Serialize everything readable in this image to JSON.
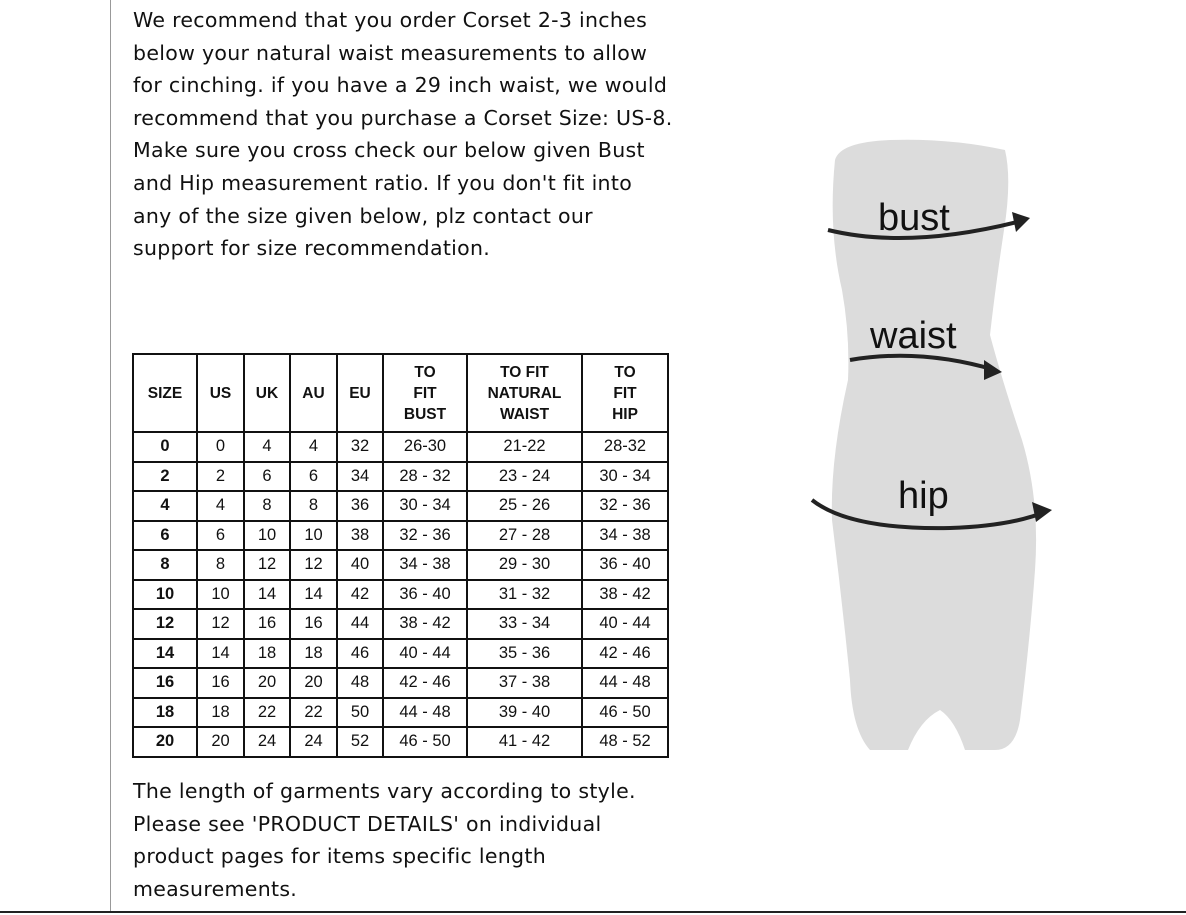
{
  "intro_text": "We recommend that you order Corset 2-3 inches below your natural waist measurements to allow for cinching. if you have a 29 inch waist, we would recommend that you purchase a Corset Size: US-8. Make sure you cross check our below given Bust and Hip measurement ratio. If you don't fit into any of the size given below, plz contact our support for size recommendation.",
  "table": {
    "headers": [
      "SIZE",
      "US",
      "UK",
      "AU",
      "EU",
      "TO FIT BUST",
      "TO FIT NATURAL WAIST",
      "TO FIT HIP"
    ],
    "rows": [
      [
        "0",
        "0",
        "4",
        "4",
        "32",
        "26-30",
        "21-22",
        "28-32"
      ],
      [
        "2",
        "2",
        "6",
        "6",
        "34",
        "28 - 32",
        "23 - 24",
        "30 - 34"
      ],
      [
        "4",
        "4",
        "8",
        "8",
        "36",
        "30 - 34",
        "25 - 26",
        "32 - 36"
      ],
      [
        "6",
        "6",
        "10",
        "10",
        "38",
        "32 - 36",
        "27 - 28",
        "34 - 38"
      ],
      [
        "8",
        "8",
        "12",
        "12",
        "40",
        "34 - 38",
        "29 - 30",
        "36 - 40"
      ],
      [
        "10",
        "10",
        "14",
        "14",
        "42",
        "36 - 40",
        "31 - 32",
        "38 - 42"
      ],
      [
        "12",
        "12",
        "16",
        "16",
        "44",
        "38 - 42",
        "33 - 34",
        "40 - 44"
      ],
      [
        "14",
        "14",
        "18",
        "18",
        "46",
        "40 - 44",
        "35 - 36",
        "42 - 46"
      ],
      [
        "16",
        "16",
        "20",
        "20",
        "48",
        "42 - 46",
        "37 - 38",
        "44 - 48"
      ],
      [
        "18",
        "18",
        "22",
        "22",
        "50",
        "44 - 48",
        "39 - 40",
        "46 - 50"
      ],
      [
        "20",
        "20",
        "24",
        "24",
        "52",
        "46 - 50",
        "41 - 42",
        "48 - 52"
      ]
    ]
  },
  "outro_text": "The length of garments vary according to style. Please see 'PRODUCT DETAILS'  on individual product pages for items specific length measurements.",
  "figure": {
    "labels": {
      "bust": "bust",
      "waist": "waist",
      "hip": "hip"
    },
    "body_color": "#dcdcdc"
  }
}
